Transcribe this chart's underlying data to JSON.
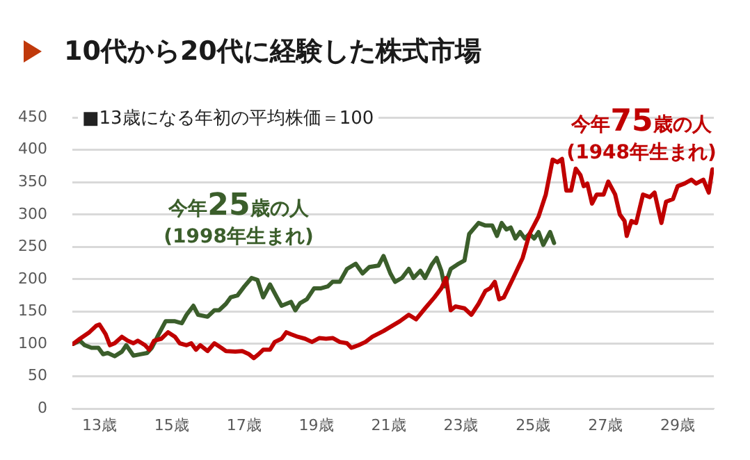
{
  "chart_data": {
    "type": "line",
    "title": "10代から20代に経験した株式市場",
    "annotations": [
      "■13歳になる年初の平均株価＝100"
    ],
    "xlim": [
      12.25,
      30
    ],
    "xticks": [
      {
        "value": 13,
        "label": "13歳"
      },
      {
        "value": 15,
        "label": "15歳"
      },
      {
        "value": 17,
        "label": "17歳"
      },
      {
        "value": 19,
        "label": "19歳"
      },
      {
        "value": 21,
        "label": "21歳"
      },
      {
        "value": 23,
        "label": "23歳"
      },
      {
        "value": 25,
        "label": "25歳"
      },
      {
        "value": 27,
        "label": "27歳"
      },
      {
        "value": 29,
        "label": "29歳"
      }
    ],
    "ylim": [
      0,
      450
    ],
    "yticks": [
      0,
      50,
      100,
      150,
      200,
      250,
      300,
      350,
      400,
      450
    ],
    "grid": "y",
    "legend": false,
    "marker": "none",
    "line_style": "solid",
    "series": [
      {
        "name": "今年25歳の人\n(1998年生まれ)",
        "color": "#3b5e2b",
        "x": [
          12.27,
          12.46,
          12.59,
          12.78,
          12.97,
          13.1,
          13.23,
          13.42,
          13.62,
          13.74,
          13.94,
          14.13,
          14.32,
          14.45,
          14.64,
          14.83,
          15.09,
          15.28,
          15.41,
          15.6,
          15.73,
          15.99,
          16.18,
          16.31,
          16.5,
          16.63,
          16.82,
          17.01,
          17.21,
          17.37,
          17.53,
          17.72,
          17.91,
          18.04,
          18.17,
          18.3,
          18.42,
          18.55,
          18.74,
          18.94,
          19.13,
          19.32,
          19.45,
          19.65,
          19.85,
          20.09,
          20.28,
          20.47,
          20.72,
          20.86,
          21.05,
          21.18,
          21.37,
          21.56,
          21.69,
          21.88,
          22.01,
          22.2,
          22.33,
          22.46,
          22.55,
          22.72,
          22.91,
          23.1,
          23.23,
          23.49,
          23.68,
          23.87,
          24.0,
          24.13,
          24.26,
          24.38,
          24.51,
          24.64,
          24.77,
          24.9,
          25.03,
          25.15,
          25.28,
          25.47,
          25.58
        ],
        "values": [
          100,
          105,
          98,
          94,
          94,
          84,
          86,
          81,
          88,
          98,
          82,
          84,
          86,
          94,
          115,
          135,
          135,
          132,
          145,
          159,
          145,
          142,
          152,
          152,
          162,
          172,
          175,
          189,
          202,
          199,
          172,
          192,
          172,
          159,
          162,
          165,
          152,
          163,
          169,
          186,
          186,
          189,
          196,
          196,
          216,
          224,
          209,
          219,
          221,
          236,
          209,
          196,
          202,
          216,
          202,
          213,
          202,
          223,
          233,
          213,
          189,
          216,
          223,
          229,
          270,
          287,
          283,
          283,
          267,
          287,
          277,
          280,
          263,
          273,
          263,
          270,
          263,
          273,
          253,
          273,
          256
        ]
      },
      {
        "name": "今年75歳の人\n(1948年生まれ)",
        "color": "#c00000",
        "x": [
          12.27,
          12.46,
          12.72,
          12.91,
          13.0,
          13.17,
          13.29,
          13.42,
          13.62,
          13.78,
          13.94,
          14.06,
          14.26,
          14.38,
          14.51,
          14.71,
          14.9,
          15.09,
          15.22,
          15.41,
          15.54,
          15.67,
          15.79,
          15.99,
          16.18,
          16.37,
          16.5,
          16.76,
          16.95,
          17.14,
          17.27,
          17.4,
          17.53,
          17.72,
          17.85,
          18.04,
          18.17,
          18.3,
          18.49,
          18.69,
          18.88,
          19.08,
          19.27,
          19.46,
          19.65,
          19.85,
          19.97,
          20.17,
          20.36,
          20.55,
          20.86,
          21.1,
          21.31,
          21.56,
          21.76,
          22.01,
          22.27,
          22.46,
          22.59,
          22.72,
          22.85,
          23.1,
          23.29,
          23.49,
          23.68,
          23.81,
          23.94,
          24.06,
          24.19,
          24.45,
          24.71,
          24.9,
          25.15,
          25.35,
          25.54,
          25.67,
          25.8,
          25.92,
          26.05,
          26.18,
          26.31,
          26.4,
          26.5,
          26.63,
          26.76,
          26.95,
          27.08,
          27.27,
          27.4,
          27.53,
          27.59,
          27.72,
          27.85,
          28.04,
          28.23,
          28.36,
          28.55,
          28.68,
          28.87,
          29.0,
          29.19,
          29.38,
          29.51,
          29.71,
          29.86,
          29.96
        ],
        "values": [
          100,
          108,
          118,
          128,
          130,
          115,
          98,
          101,
          111,
          105,
          101,
          105,
          98,
          91,
          105,
          108,
          118,
          111,
          101,
          98,
          101,
          91,
          98,
          89,
          101,
          94,
          89,
          88,
          89,
          84,
          78,
          84,
          91,
          91,
          103,
          108,
          118,
          115,
          111,
          108,
          103,
          109,
          108,
          109,
          103,
          101,
          94,
          98,
          103,
          111,
          120,
          128,
          135,
          145,
          138,
          155,
          172,
          186,
          202,
          152,
          158,
          155,
          145,
          162,
          182,
          186,
          196,
          169,
          172,
          202,
          233,
          270,
          297,
          331,
          385,
          381,
          386,
          337,
          337,
          371,
          361,
          344,
          348,
          317,
          331,
          331,
          351,
          331,
          300,
          290,
          267,
          290,
          287,
          331,
          327,
          334,
          287,
          320,
          324,
          344,
          348,
          354,
          348,
          354,
          334,
          370
        ]
      }
    ]
  }
}
